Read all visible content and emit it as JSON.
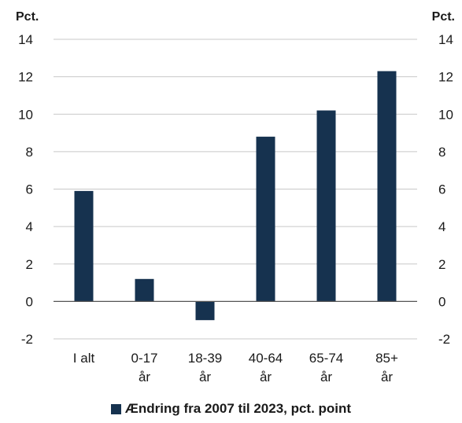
{
  "colors": {
    "bar": "#16324f",
    "grid": "#c8c8c8",
    "axis": "#555555"
  },
  "chart_data": {
    "type": "bar",
    "categories": [
      [
        "I alt"
      ],
      [
        "0-17",
        "år"
      ],
      [
        "18-39",
        "år"
      ],
      [
        "40-64",
        "år"
      ],
      [
        "65-74",
        "år"
      ],
      [
        "85+",
        "år"
      ]
    ],
    "series": [
      {
        "name": "Ændring fra 2007 til 2023, pct. point",
        "values": [
          5.9,
          1.2,
          -1.0,
          8.8,
          10.2,
          12.3
        ]
      }
    ],
    "ylabel_left": "Pct.",
    "ylabel_right": "Pct.",
    "ylim": [
      -2,
      14
    ],
    "yticks": [
      -2,
      0,
      2,
      4,
      6,
      8,
      10,
      12,
      14
    ],
    "grid": true,
    "legend_position": "bottom"
  }
}
